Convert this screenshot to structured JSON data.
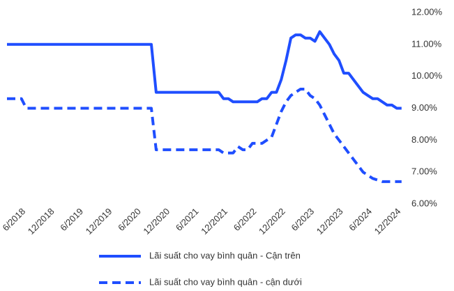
{
  "chart_data": {
    "type": "line",
    "categories": [
      null,
      null,
      null,
      "6/2018",
      null,
      null,
      null,
      null,
      null,
      "12/2018",
      null,
      null,
      null,
      null,
      null,
      "6/2019",
      null,
      null,
      null,
      null,
      null,
      "12/2019",
      null,
      null,
      null,
      null,
      null,
      "6/2020",
      null,
      null,
      null,
      null,
      null,
      "12/2020",
      null,
      null,
      null,
      null,
      null,
      "6/2021",
      null,
      null,
      null,
      null,
      null,
      "12/2021",
      null,
      null,
      null,
      null,
      null,
      "6/2022",
      null,
      null,
      null,
      null,
      null,
      "12/2022",
      null,
      null,
      null,
      null,
      null,
      "6/2023",
      null,
      null,
      null,
      null,
      null,
      "12/2023",
      null,
      null,
      null,
      null,
      null,
      "6/2024",
      null,
      null,
      null,
      null,
      null,
      "12/2024",
      null
    ],
    "series": [
      {
        "name": "Lãi suất cho vay bình quân - Cận trên",
        "color": "#1f4eff",
        "dash": false,
        "values": [
          11.0,
          11.0,
          11.0,
          11.0,
          11.0,
          11.0,
          11.0,
          11.0,
          11.0,
          11.0,
          11.0,
          11.0,
          11.0,
          11.0,
          11.0,
          11.0,
          11.0,
          11.0,
          11.0,
          11.0,
          11.0,
          11.0,
          11.0,
          11.0,
          11.0,
          11.0,
          11.0,
          11.0,
          11.0,
          11.0,
          11.0,
          9.5,
          9.5,
          9.5,
          9.5,
          9.5,
          9.5,
          9.5,
          9.5,
          9.5,
          9.5,
          9.5,
          9.5,
          9.5,
          9.5,
          9.3,
          9.3,
          9.2,
          9.2,
          9.2,
          9.2,
          9.2,
          9.2,
          9.3,
          9.3,
          9.5,
          9.5,
          9.9,
          10.5,
          11.2,
          11.3,
          11.3,
          11.2,
          11.2,
          11.1,
          11.4,
          11.2,
          11.0,
          10.7,
          10.5,
          10.1,
          10.1,
          9.9,
          9.7,
          9.5,
          9.4,
          9.3,
          9.3,
          9.2,
          9.1,
          9.1,
          9.0,
          9.0
        ]
      },
      {
        "name": "Lãi suất cho vay bình quân - cận dưới",
        "color": "#1f4eff",
        "dash": true,
        "values": [
          9.3,
          9.3,
          9.3,
          9.3,
          9.0,
          9.0,
          9.0,
          9.0,
          9.0,
          9.0,
          9.0,
          9.0,
          9.0,
          9.0,
          9.0,
          9.0,
          9.0,
          9.0,
          9.0,
          9.0,
          9.0,
          9.0,
          9.0,
          9.0,
          9.0,
          9.0,
          9.0,
          9.0,
          9.0,
          9.0,
          9.0,
          7.7,
          7.7,
          7.7,
          7.7,
          7.7,
          7.7,
          7.7,
          7.7,
          7.7,
          7.7,
          7.7,
          7.7,
          7.7,
          7.7,
          7.6,
          7.6,
          7.6,
          7.8,
          7.7,
          7.7,
          7.9,
          7.9,
          7.9,
          8.0,
          8.1,
          8.5,
          8.9,
          9.2,
          9.4,
          9.5,
          9.6,
          9.6,
          9.4,
          9.3,
          9.1,
          8.8,
          8.5,
          8.2,
          8.0,
          7.8,
          7.6,
          7.4,
          7.2,
          7.0,
          6.9,
          6.8,
          6.75,
          6.7,
          6.7,
          6.7,
          6.7,
          6.7
        ]
      }
    ],
    "ylim": [
      6,
      12
    ],
    "yticks": [
      {
        "value": 6,
        "label": "6.00%"
      },
      {
        "value": 7,
        "label": "7.00%"
      },
      {
        "value": 8,
        "label": "8.00%"
      },
      {
        "value": 9,
        "label": "9.00%"
      },
      {
        "value": 10,
        "label": "10.00%"
      },
      {
        "value": 11,
        "label": "11.00%"
      },
      {
        "value": 12,
        "label": "12.00%"
      }
    ],
    "grid": false
  }
}
